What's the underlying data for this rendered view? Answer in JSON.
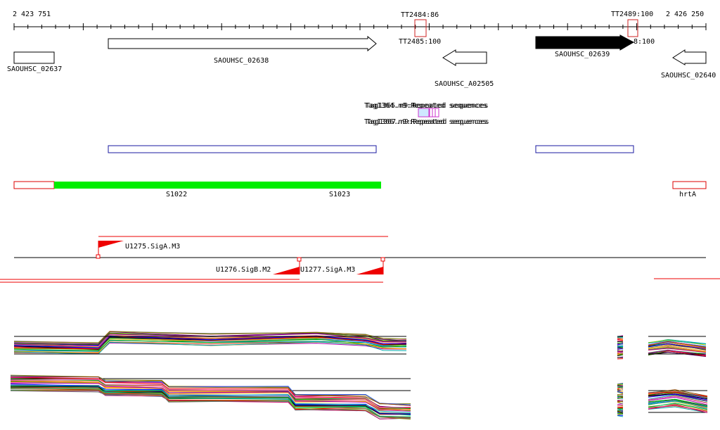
{
  "ruler": {
    "start_label": "2 423 751",
    "end_label": "2 426 250"
  },
  "terminators": [
    {
      "label": "TT2484:86"
    },
    {
      "label": "TT2485:100"
    },
    {
      "label": "TT2489:100"
    },
    {
      "label": "8:100"
    }
  ],
  "genes": [
    {
      "name": "SAOUHSC_02637",
      "strand": "+",
      "style": "outline"
    },
    {
      "name": "SAOUHSC_02638",
      "strand": "+",
      "style": "outline"
    },
    {
      "name": "SAOUHSC_A02505",
      "strand": "-",
      "style": "outline"
    },
    {
      "name": "SAOUHSC_02639",
      "strand": "+",
      "style": "filled"
    },
    {
      "name": "SAOUHSC_02640",
      "strand": "-",
      "style": "outline"
    }
  ],
  "repeats": {
    "row1_a": "Tag1364.n9:Repeated sequences",
    "row1_b": "Tag1365.n9:Repeated sequences",
    "row2_a": "Tag1366.n9:Repeated sequences",
    "row2_b": "Tag1367.n9:Repeated sequences"
  },
  "segments": [
    {
      "name": "S1022"
    },
    {
      "name": "S1023"
    },
    {
      "name": "hrtA"
    }
  ],
  "promoters": [
    {
      "name": "U1275.SigA.M3"
    },
    {
      "name": "U1276.SigB.M2"
    },
    {
      "name": "U1277.SigA.M3"
    }
  ],
  "colors": {
    "segment_fill": "#00ee00",
    "segment_outline": "#dd0000",
    "region_box": "#1a1aa0",
    "promoter": "#ee0000",
    "terminator": "#cc2222",
    "repeat_box": "#cc33cc"
  }
}
